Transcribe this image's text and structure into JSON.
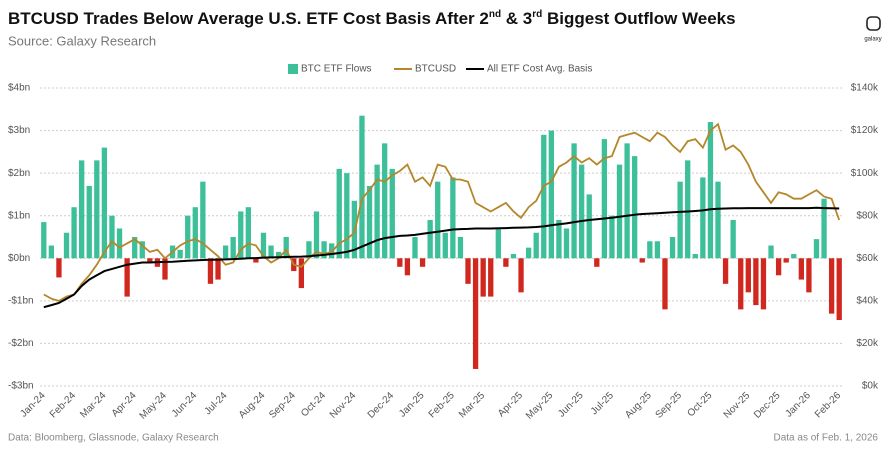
{
  "chart_data": {
    "type": "bar_line_dual",
    "title": [
      "BTCUSD Trades Below Average U.S. ETF Cost Basis After 2",
      "nd",
      " & 3",
      "rd",
      " Biggest Outflow Weeks"
    ],
    "subtitle": "Source: Galaxy Research",
    "footer_left": "Data: Bloomberg, Glassnode, Galaxy Research",
    "footer_right": "Data as of Feb. 1, 2026",
    "logo_text": "galaxy",
    "categories": [
      "Jan-24",
      null,
      null,
      null,
      "Feb-24",
      null,
      null,
      null,
      "Mar-24",
      null,
      null,
      null,
      "Apr-24",
      null,
      null,
      null,
      "May-24",
      null,
      null,
      null,
      "Jun-24",
      null,
      null,
      null,
      "Jul-24",
      null,
      null,
      null,
      null,
      "Aug-24",
      null,
      null,
      null,
      "Sep-24",
      null,
      null,
      null,
      "Oct-24",
      null,
      null,
      null,
      "Nov-24",
      null,
      null,
      null,
      null,
      "Dec-24",
      null,
      null,
      null,
      "Jan-25",
      null,
      null,
      null,
      "Feb-25",
      null,
      null,
      null,
      "Mar-25",
      null,
      null,
      null,
      null,
      "Apr-25",
      null,
      null,
      null,
      "May-25",
      null,
      null,
      null,
      "Jun-25",
      null,
      null,
      null,
      "Jul-25",
      null,
      null,
      null,
      null,
      "Aug-25",
      null,
      null,
      null,
      "Sep-25",
      null,
      null,
      null,
      "Oct-25",
      null,
      null,
      null,
      null,
      "Nov-25",
      null,
      null,
      null,
      "Dec-25",
      null,
      null,
      null,
      "Jan-26",
      null,
      null,
      null,
      "Feb-26"
    ],
    "series": [
      {
        "name": "BTC ETF Flows",
        "type": "bar",
        "axis": "y",
        "color": "#3dbf9a",
        "negative_color": "#d0281e",
        "values": [
          0.85,
          0.3,
          -0.45,
          0.6,
          1.2,
          2.3,
          1.7,
          2.3,
          2.6,
          1.0,
          0.7,
          -0.9,
          0.5,
          0.4,
          -0.1,
          -0.2,
          -0.5,
          0.3,
          0.2,
          1.0,
          1.2,
          1.8,
          -0.6,
          -0.5,
          0.3,
          0.5,
          1.1,
          1.2,
          -0.1,
          0.6,
          0.3,
          0.15,
          0.5,
          -0.3,
          -0.7,
          0.4,
          1.1,
          0.4,
          0.35,
          2.1,
          2.0,
          1.35,
          3.35,
          1.7,
          2.2,
          2.7,
          2.1,
          -0.2,
          -0.4,
          0.5,
          -0.2,
          0.9,
          1.8,
          0.6,
          1.9,
          0.5,
          -0.6,
          -2.6,
          -0.9,
          -0.9,
          0.7,
          -0.2,
          0.1,
          -0.8,
          0.25,
          0.6,
          2.9,
          3.0,
          0.9,
          0.7,
          2.7,
          2.2,
          1.5,
          -0.2,
          2.8,
          1.0,
          2.2,
          2.7,
          2.4,
          -0.1,
          0.4,
          0.4,
          -1.2,
          0.5,
          1.8,
          2.3,
          0.1,
          1.9,
          3.2,
          1.8,
          -0.6,
          0.9,
          -1.2,
          -0.8,
          -1.1,
          -1.2,
          0.3,
          -0.4,
          -0.1,
          0.1,
          -0.5,
          -0.8,
          0.45,
          1.4,
          -1.3,
          -1.45
        ]
      },
      {
        "name": "BTCUSD",
        "type": "line",
        "axis": "y2",
        "color": "#b5862a",
        "values": [
          43000,
          41000,
          40000,
          42000,
          43000,
          48000,
          52000,
          57000,
          63000,
          68000,
          65000,
          67000,
          69000,
          66000,
          63000,
          64000,
          60000,
          63000,
          66000,
          68000,
          69000,
          67000,
          64000,
          61000,
          57000,
          58000,
          64000,
          67000,
          66000,
          61000,
          58000,
          60000,
          64000,
          57000,
          56000,
          60000,
          63000,
          62000,
          63000,
          67000,
          69000,
          72000,
          88000,
          92000,
          97000,
          96000,
          99000,
          101000,
          104000,
          96000,
          98000,
          94000,
          104000,
          103000,
          97000,
          97000,
          96000,
          86000,
          84000,
          82000,
          84000,
          86000,
          82000,
          79000,
          84000,
          87000,
          94000,
          96000,
          103000,
          105000,
          108000,
          105000,
          107000,
          104000,
          107000,
          108000,
          117000,
          118000,
          119000,
          117000,
          115000,
          119000,
          117000,
          113000,
          110000,
          115000,
          116000,
          112000,
          120000,
          123000,
          111000,
          113000,
          110000,
          104000,
          96000,
          91000,
          86000,
          91000,
          90000,
          88000,
          88000,
          90000,
          92000,
          89000,
          88000,
          78000
        ]
      },
      {
        "name": "All ETF Cost Avg. Basis",
        "type": "line",
        "axis": "y2",
        "color": "#000000",
        "values": [
          37000,
          38000,
          39000,
          41000,
          43000,
          47000,
          50000,
          52000,
          54000,
          55000,
          56000,
          57000,
          57500,
          58000,
          58000,
          58200,
          58300,
          58400,
          58600,
          58800,
          59000,
          59200,
          59300,
          59400,
          59500,
          59600,
          59800,
          60000,
          60100,
          60300,
          60400,
          60500,
          60600,
          60700,
          60800,
          61000,
          61300,
          61600,
          62000,
          62500,
          63000,
          64000,
          65500,
          67000,
          68500,
          69500,
          70000,
          70500,
          70700,
          71000,
          71500,
          72000,
          72500,
          73000,
          73500,
          73700,
          73800,
          74000,
          74000,
          74000,
          74100,
          74200,
          74300,
          74400,
          74500,
          74700,
          75000,
          75500,
          76000,
          76400,
          77000,
          77500,
          78000,
          78300,
          78700,
          79000,
          79500,
          80000,
          80500,
          80800,
          81000,
          81200,
          81400,
          81600,
          81800,
          82000,
          82200,
          82500,
          83000,
          83300,
          83400,
          83500,
          83500,
          83600,
          83600,
          83600,
          83600,
          83600,
          83600,
          83600,
          83600,
          83600,
          83700,
          83600,
          83500,
          83400
        ]
      }
    ],
    "ylim": [
      -3,
      4
    ],
    "yticks": [
      {
        "value": -3,
        "label": "-$3bn"
      },
      {
        "value": -2,
        "label": "-$2bn"
      },
      {
        "value": -1,
        "label": "-$1bn"
      },
      {
        "value": 0,
        "label": "$0bn"
      },
      {
        "value": 1,
        "label": "$1bn"
      },
      {
        "value": 2,
        "label": "$2bn"
      },
      {
        "value": 3,
        "label": "$3bn"
      },
      {
        "value": 4,
        "label": "$4bn"
      }
    ],
    "y2lim": [
      0,
      140000
    ],
    "y2ticks": [
      {
        "value": 0,
        "label": "$0k"
      },
      {
        "value": 20000,
        "label": "$20k"
      },
      {
        "value": 40000,
        "label": "$40k"
      },
      {
        "value": 60000,
        "label": "$60k"
      },
      {
        "value": 80000,
        "label": "$80k"
      },
      {
        "value": 100000,
        "label": "$100k"
      },
      {
        "value": 120000,
        "label": "$120k"
      },
      {
        "value": 140000,
        "label": "$140k"
      }
    ],
    "grid": true,
    "legend": "top"
  }
}
